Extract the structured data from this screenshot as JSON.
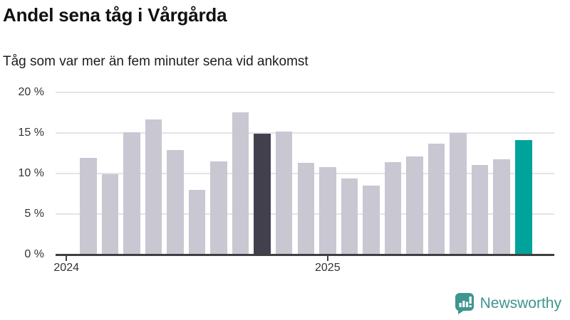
{
  "title": "Andel sena tåg i Vårgårda",
  "subtitle": "Tåg som var mer än fem minuter sena vid ankomst",
  "chart_data": {
    "type": "bar",
    "title": "Andel sena tåg i Vårgårda",
    "subtitle": "Tåg som var mer än fem minuter sena vid ankomst",
    "unit": "%",
    "categories": [
      "2024-02",
      "2024-03",
      "2024-04",
      "2024-05",
      "2024-06",
      "2024-07",
      "2024-08",
      "2024-09",
      "2024-10",
      "2024-11",
      "2024-12",
      "2025-01",
      "2025-02",
      "2025-03",
      "2025-04",
      "2025-05",
      "2025-06",
      "2025-07",
      "2025-08",
      "2025-09",
      "2025-10"
    ],
    "values": [
      11.8,
      9.8,
      15.0,
      16.6,
      12.8,
      7.9,
      11.4,
      17.5,
      14.8,
      15.1,
      11.2,
      10.7,
      9.3,
      8.4,
      11.3,
      12.0,
      13.6,
      14.9,
      11.0,
      11.7,
      14.0
    ],
    "highlight_dark_index": 8,
    "highlight_current_index": 20,
    "colors": {
      "bar_default": "#c8c7d2",
      "bar_highlight_dark": "#42404d",
      "bar_highlight_current": "#00a39a",
      "gridline": "#e4e3e7",
      "axis_line": "#3f3f42",
      "axis_text": "#333333"
    },
    "ylim": [
      0,
      20
    ],
    "yticks": [
      {
        "value": 0,
        "label": "0 %"
      },
      {
        "value": 5,
        "label": "5 %"
      },
      {
        "value": 10,
        "label": "10 %"
      },
      {
        "value": 15,
        "label": "15 %"
      },
      {
        "value": 20,
        "label": "20 %"
      }
    ],
    "xticks": [
      {
        "label": "2024",
        "month_index": -1
      },
      {
        "label": "2025",
        "month_index": 11
      }
    ],
    "grid": true,
    "legend": "none",
    "xlabel": "",
    "ylabel": ""
  },
  "footer": {
    "brand": "Newsworthy",
    "brand_color": "#3e948d"
  }
}
